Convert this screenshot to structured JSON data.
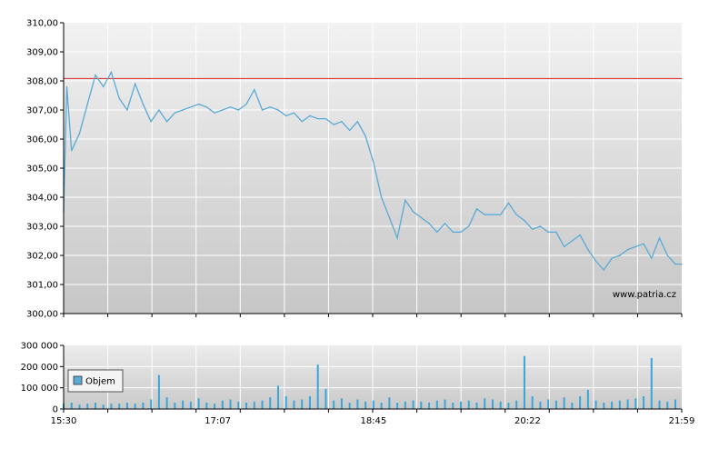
{
  "chart_data": [
    {
      "type": "line",
      "title": "",
      "xlabel": "",
      "ylabel": "",
      "ylim": [
        300,
        310
      ],
      "y_ticks": [
        "310,00",
        "309,00",
        "308,00",
        "307,00",
        "306,00",
        "305,00",
        "304,00",
        "303,00",
        "302,00",
        "301,00",
        "300,00"
      ],
      "y_tick_values": [
        310,
        309,
        308,
        307,
        306,
        305,
        304,
        303,
        302,
        301,
        300
      ],
      "reference_line": {
        "value": 308.08,
        "color": "#e03a3a"
      },
      "watermark": "www.patria.cz",
      "grid": true,
      "series": [
        {
          "color": "#5aaad6",
          "x": [
            "15:30",
            "15:32",
            "15:35",
            "15:40",
            "15:45",
            "15:50",
            "15:55",
            "16:00",
            "16:05",
            "16:10",
            "16:15",
            "16:20",
            "16:25",
            "16:30",
            "16:35",
            "16:40",
            "16:45",
            "16:50",
            "16:55",
            "17:00",
            "17:05",
            "17:10",
            "17:15",
            "17:20",
            "17:25",
            "17:30",
            "17:35",
            "17:40",
            "17:45",
            "17:50",
            "17:55",
            "18:00",
            "18:05",
            "18:10",
            "18:15",
            "18:20",
            "18:25",
            "18:30",
            "18:35",
            "18:40",
            "18:45",
            "18:50",
            "18:55",
            "19:00",
            "19:05",
            "19:10",
            "19:15",
            "19:20",
            "19:25",
            "19:30",
            "19:35",
            "19:40",
            "19:45",
            "19:50",
            "19:55",
            "20:00",
            "20:05",
            "20:10",
            "20:15",
            "20:20",
            "20:25",
            "20:30",
            "20:35",
            "20:40",
            "20:45",
            "20:50",
            "20:55",
            "21:00",
            "21:05",
            "21:10",
            "21:15",
            "21:20",
            "21:25",
            "21:30",
            "21:35",
            "21:40",
            "21:45",
            "21:50",
            "21:55",
            "21:59"
          ],
          "values": [
            303.5,
            307.8,
            305.6,
            306.2,
            307.2,
            308.2,
            307.8,
            308.3,
            307.4,
            307.0,
            307.9,
            307.2,
            306.6,
            307.0,
            306.6,
            306.9,
            307.0,
            307.1,
            307.2,
            307.1,
            306.9,
            307.0,
            307.1,
            307.0,
            307.2,
            307.7,
            307.0,
            307.1,
            307.0,
            306.8,
            306.9,
            306.6,
            306.8,
            306.7,
            306.7,
            306.5,
            306.6,
            306.3,
            306.6,
            306.1,
            305.2,
            304.0,
            303.3,
            302.6,
            303.9,
            303.5,
            303.3,
            303.1,
            302.8,
            303.1,
            302.8,
            302.8,
            303.0,
            303.6,
            303.4,
            303.4,
            303.4,
            303.8,
            303.4,
            303.2,
            302.9,
            303.0,
            302.8,
            302.8,
            302.3,
            302.5,
            302.7,
            302.2,
            301.8,
            301.5,
            301.9,
            302.0,
            302.2,
            302.3,
            302.4,
            301.9,
            302.6,
            302.0,
            301.7,
            301.7
          ]
        }
      ]
    },
    {
      "type": "bar",
      "title": "",
      "xlabel": "",
      "ylabel": "",
      "ylim": [
        0,
        300000
      ],
      "y_ticks": [
        "300 000",
        "200 000",
        "100 000",
        "0"
      ],
      "y_tick_values": [
        300000,
        200000,
        100000,
        0
      ],
      "x_ticks": [
        "15:30",
        "17:07",
        "18:45",
        "20:22",
        "21:59"
      ],
      "legend": {
        "position": "left",
        "label": "Objem",
        "color": "#5aaad6"
      },
      "grid": true,
      "series": [
        {
          "name": "Objem",
          "color": "#3aa5d8",
          "x": [
            "15:30",
            "15:35",
            "15:40",
            "15:45",
            "15:50",
            "15:55",
            "16:00",
            "16:05",
            "16:10",
            "16:15",
            "16:20",
            "16:25",
            "16:30",
            "16:35",
            "16:40",
            "16:45",
            "16:50",
            "16:55",
            "17:00",
            "17:05",
            "17:10",
            "17:15",
            "17:20",
            "17:25",
            "17:30",
            "17:35",
            "17:40",
            "17:45",
            "17:50",
            "17:55",
            "18:00",
            "18:05",
            "18:10",
            "18:15",
            "18:20",
            "18:25",
            "18:30",
            "18:35",
            "18:40",
            "18:45",
            "18:50",
            "18:55",
            "19:00",
            "19:05",
            "19:10",
            "19:15",
            "19:20",
            "19:25",
            "19:30",
            "19:35",
            "19:40",
            "19:45",
            "19:50",
            "19:55",
            "20:00",
            "20:05",
            "20:10",
            "20:15",
            "20:20",
            "20:25",
            "20:30",
            "20:35",
            "20:40",
            "20:45",
            "20:50",
            "20:55",
            "21:00",
            "21:05",
            "21:10",
            "21:15",
            "21:20",
            "21:25",
            "21:30",
            "21:35",
            "21:40",
            "21:45",
            "21:50",
            "21:55"
          ],
          "values": [
            25000,
            30000,
            20000,
            25000,
            30000,
            20000,
            25000,
            25000,
            30000,
            25000,
            30000,
            45000,
            160000,
            55000,
            30000,
            40000,
            35000,
            50000,
            30000,
            25000,
            40000,
            45000,
            35000,
            30000,
            35000,
            40000,
            55000,
            110000,
            60000,
            40000,
            45000,
            60000,
            210000,
            95000,
            40000,
            50000,
            30000,
            45000,
            35000,
            40000,
            30000,
            55000,
            30000,
            35000,
            40000,
            35000,
            30000,
            40000,
            45000,
            30000,
            35000,
            40000,
            30000,
            50000,
            45000,
            35000,
            30000,
            40000,
            250000,
            60000,
            35000,
            45000,
            40000,
            55000,
            30000,
            60000,
            90000,
            40000,
            30000,
            35000,
            40000,
            45000,
            50000,
            60000,
            240000,
            40000,
            35000,
            45000
          ]
        }
      ]
    }
  ]
}
